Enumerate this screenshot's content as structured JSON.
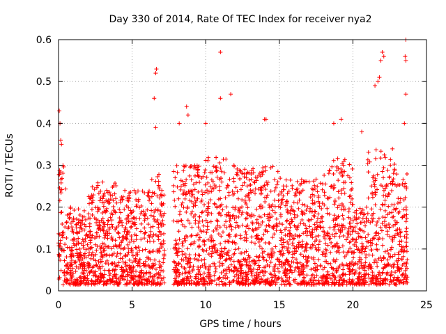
{
  "chart_data": {
    "type": "scatter",
    "title": "Day 330 of 2014, Rate Of TEC Index for receiver nya2",
    "xlabel": "GPS time / hours",
    "ylabel": "ROTI / TECUs",
    "xlim": [
      0,
      25
    ],
    "ylim": [
      0,
      0.6
    ],
    "xticks": [
      "0",
      "5",
      "10",
      "15",
      "20",
      "25"
    ],
    "xtick_values": [
      0,
      5,
      10,
      15,
      20,
      25
    ],
    "yticks": [
      "0",
      "0.1",
      "0.2",
      "0.3",
      "0.4",
      "0.5",
      "0.6"
    ],
    "ytick_values": [
      0,
      0.1,
      0.2,
      0.3,
      0.4,
      0.5,
      0.6
    ],
    "grid": true,
    "marker": "+",
    "color": "#ff0000",
    "note_gaps_hours": [
      [
        7.2,
        7.8
      ]
    ],
    "series": [
      {
        "values_summary": "Dense ROTI samples roughly 0.01–0.35 TECU/min from 0 to 23.7 h, with scattered spikes above 0.4",
        "points": [
          [
            0.05,
            0.43
          ],
          [
            0.1,
            0.4
          ],
          [
            0.15,
            0.36
          ],
          [
            0.2,
            0.35
          ],
          [
            0.3,
            0.3
          ],
          [
            6.6,
            0.52
          ],
          [
            6.65,
            0.53
          ],
          [
            6.5,
            0.46
          ],
          [
            6.6,
            0.39
          ],
          [
            8.2,
            0.4
          ],
          [
            8.7,
            0.44
          ],
          [
            8.8,
            0.42
          ],
          [
            10.0,
            0.4
          ],
          [
            11.0,
            0.57
          ],
          [
            11.0,
            0.46
          ],
          [
            11.7,
            0.47
          ],
          [
            14.0,
            0.41
          ],
          [
            14.1,
            0.41
          ],
          [
            18.7,
            0.4
          ],
          [
            19.2,
            0.41
          ],
          [
            20.6,
            0.38
          ],
          [
            21.5,
            0.49
          ],
          [
            21.7,
            0.5
          ],
          [
            21.8,
            0.51
          ],
          [
            21.9,
            0.55
          ],
          [
            22.0,
            0.57
          ],
          [
            22.1,
            0.56
          ],
          [
            23.6,
            0.6
          ],
          [
            23.55,
            0.56
          ],
          [
            23.6,
            0.55
          ],
          [
            23.6,
            0.47
          ],
          [
            23.5,
            0.4
          ]
        ]
      }
    ]
  }
}
